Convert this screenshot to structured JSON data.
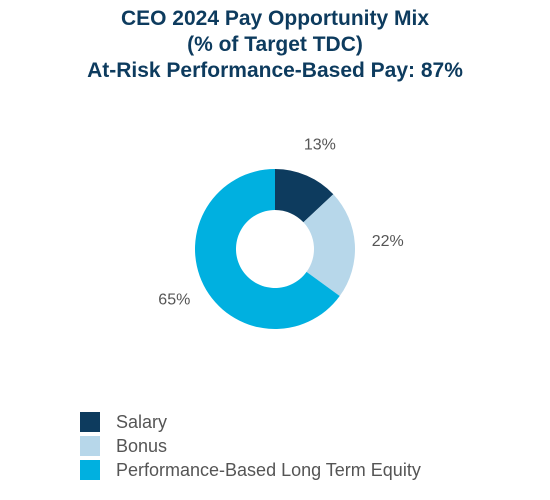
{
  "title": {
    "line1": "CEO 2024 Pay Opportunity Mix",
    "line2": "(% of Target TDC)",
    "line3": "At-Risk Performance-Based Pay: 87%"
  },
  "chart_data": {
    "type": "pie",
    "title": "CEO 2024 Pay Opportunity Mix (% of Target TDC) At-Risk Performance-Based Pay: 87%",
    "donut": true,
    "slices": [
      {
        "name": "Salary",
        "value": 13,
        "label": "13%",
        "color": "#0d3b5e"
      },
      {
        "name": "Bonus",
        "value": 22,
        "label": "22%",
        "color": "#b7d7ea"
      },
      {
        "name": "Performance-Based Long Term Equity",
        "value": 65,
        "label": "65%",
        "color": "#00b0e0"
      }
    ],
    "legend_position": "bottom-left"
  },
  "legend": {
    "items": [
      {
        "label": "Salary",
        "color": "#0d3b5e"
      },
      {
        "label": "Bonus",
        "color": "#b7d7ea"
      },
      {
        "label": "Performance-Based Long Term Equity",
        "color": "#00b0e0"
      }
    ]
  }
}
